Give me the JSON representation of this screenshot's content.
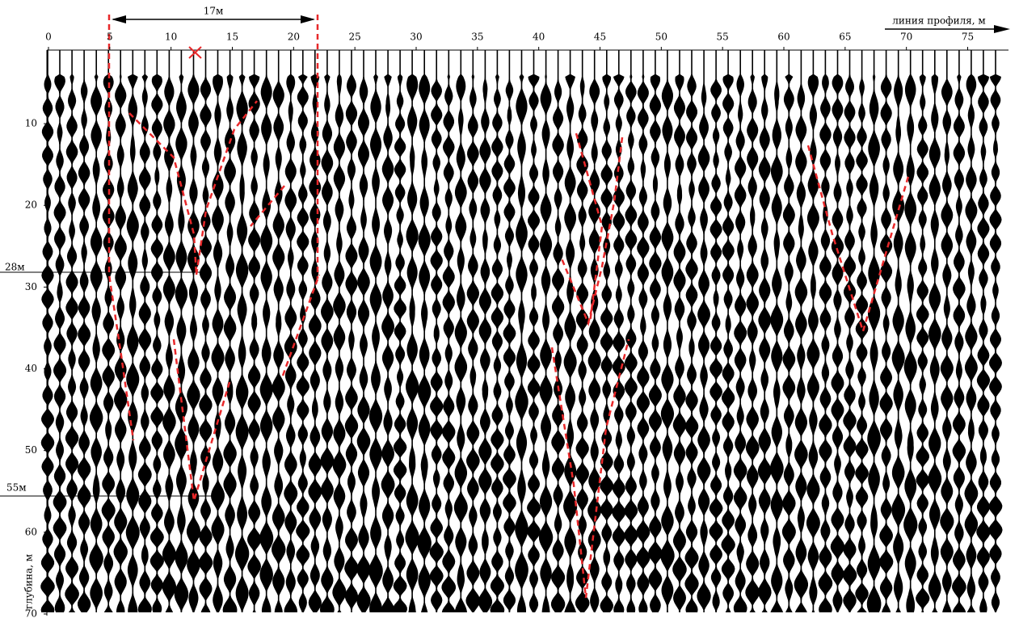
{
  "chart_data": {
    "type": "wiggle",
    "x_label": "линия профиля, м",
    "y_label": "глубина, м",
    "xlim": [
      0,
      78
    ],
    "ylim": [
      1,
      70
    ],
    "xticks": [
      0,
      5,
      10,
      15,
      20,
      25,
      30,
      35,
      40,
      45,
      50,
      55,
      60,
      65,
      70,
      75
    ],
    "yticks": [
      10,
      20,
      30,
      40,
      50,
      60,
      70
    ],
    "annotations": {
      "width": "17м",
      "depth_top": "28м",
      "depth_bottom": "55м"
    }
  }
}
